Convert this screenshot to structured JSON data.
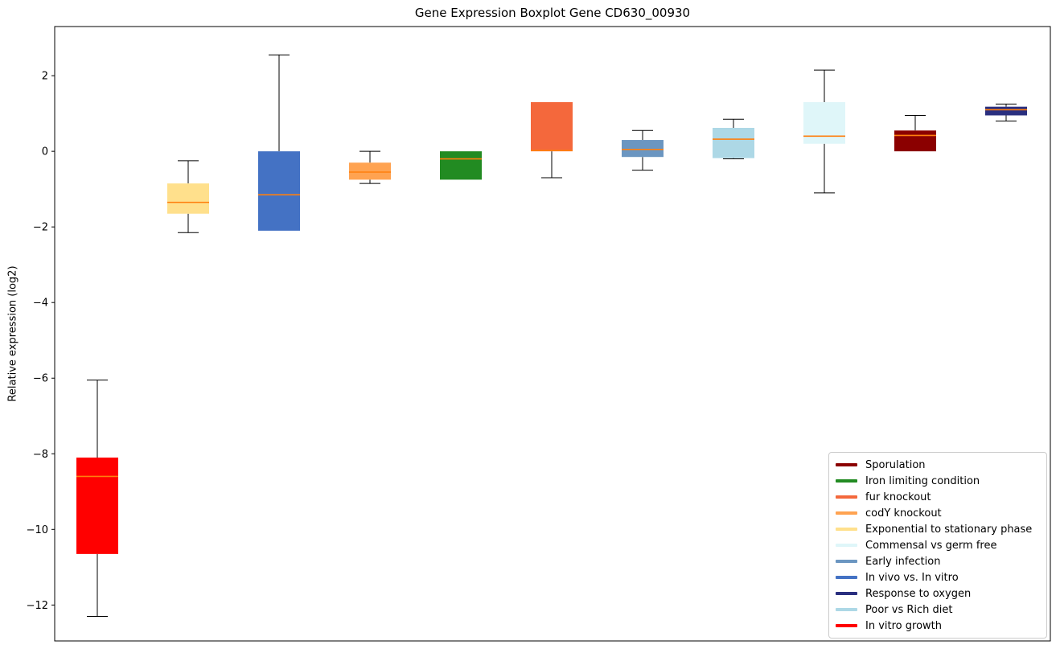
{
  "chart_data": {
    "type": "boxplot",
    "title": "Gene Expression Boxplot Gene CD630_00930",
    "xlabel": "",
    "ylabel": "Relative expression (log2)",
    "ylim": [
      -12.95,
      3.3
    ],
    "yticks": [
      2,
      0,
      -2,
      -4,
      -6,
      -8,
      -10,
      -12
    ],
    "grid": false,
    "legend_position": "lower right",
    "median_color": "#ff7f0e",
    "series": [
      {
        "name": "In vitro growth",
        "color": "#ff0000",
        "whislo": -12.3,
        "q1": -10.65,
        "med": -8.6,
        "q3": -8.1,
        "whishi": -6.05
      },
      {
        "name": "Exponential to stationary phase",
        "color": "#ffe08c",
        "whislo": -2.15,
        "q1": -1.65,
        "med": -1.35,
        "q3": -0.85,
        "whishi": -0.25
      },
      {
        "name": "In vivo vs. In vitro",
        "color": "#4472c4",
        "whislo": -2.1,
        "q1": -2.1,
        "med": -1.15,
        "q3": 0.0,
        "whishi": 2.55
      },
      {
        "name": "codY knockout",
        "color": "#ffa351",
        "whislo": -0.85,
        "q1": -0.75,
        "med": -0.55,
        "q3": -0.3,
        "whishi": 0.0
      },
      {
        "name": "Iron limiting condition",
        "color": "#228B22",
        "whislo": -0.75,
        "q1": -0.75,
        "med": -0.2,
        "q3": 0.0,
        "whishi": 0.0
      },
      {
        "name": "fur knockout",
        "color": "#f4683c",
        "whislo": -0.7,
        "q1": 0.0,
        "med": 0.02,
        "q3": 1.3,
        "whishi": 1.3
      },
      {
        "name": "Early infection",
        "color": "#6b96c1",
        "whislo": -0.5,
        "q1": -0.15,
        "med": 0.05,
        "q3": 0.3,
        "whishi": 0.55
      },
      {
        "name": "Poor vs Rich diet",
        "color": "#add8e6",
        "whislo": -0.2,
        "q1": -0.18,
        "med": 0.32,
        "q3": 0.62,
        "whishi": 0.85
      },
      {
        "name": "Commensal vs germ free",
        "color": "#dff6f9",
        "whislo": -1.1,
        "q1": 0.2,
        "med": 0.4,
        "q3": 1.3,
        "whishi": 2.15
      },
      {
        "name": "Sporulation",
        "color": "#8b0000",
        "whislo": 0.0,
        "q1": 0.0,
        "med": 0.42,
        "q3": 0.55,
        "whishi": 0.95
      },
      {
        "name": "Response to oxygen",
        "color": "#2a2f7f",
        "whislo": 0.8,
        "q1": 0.95,
        "med": 1.1,
        "q3": 1.18,
        "whishi": 1.25
      }
    ],
    "legend": [
      {
        "label": "Sporulation",
        "color": "#8b0000"
      },
      {
        "label": "Iron limiting condition",
        "color": "#228B22"
      },
      {
        "label": "fur knockout",
        "color": "#f4683c"
      },
      {
        "label": "codY knockout",
        "color": "#ffa351"
      },
      {
        "label": "Exponential to stationary phase",
        "color": "#ffe08c"
      },
      {
        "label": "Commensal vs germ free",
        "color": "#dff6f9"
      },
      {
        "label": "Early infection",
        "color": "#6b96c1"
      },
      {
        "label": "In vivo vs. In vitro",
        "color": "#4472c4"
      },
      {
        "label": "Response to oxygen",
        "color": "#2a2f7f"
      },
      {
        "label": "Poor vs Rich diet",
        "color": "#add8e6"
      },
      {
        "label": "In vitro growth",
        "color": "#ff0000"
      }
    ]
  }
}
